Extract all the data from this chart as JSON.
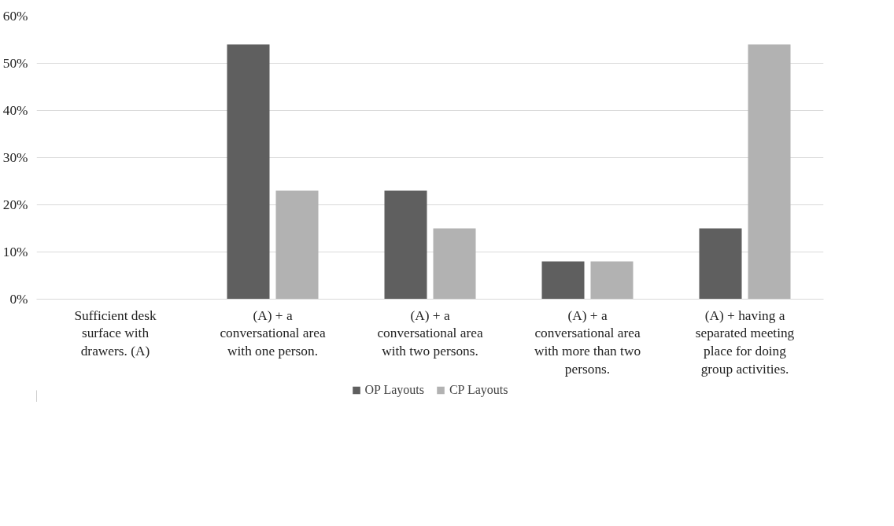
{
  "chart_data": {
    "type": "bar",
    "categories": [
      "Sufficient desk surface with drawers. (A)",
      "(A) + a conversational area with one person.",
      "(A) + a conversational area with two persons.",
      "(A) + a conversational area with more than two persons.",
      "(A) + having a separated meeting place for doing group activities."
    ],
    "series": [
      {
        "name": "OP Layouts",
        "color": "#5f5f5f",
        "values": [
          0,
          54,
          23,
          8,
          15
        ]
      },
      {
        "name": "CP Layouts",
        "color": "#b2b2b2",
        "values": [
          0,
          23,
          15,
          8,
          54
        ]
      }
    ],
    "ylim": [
      0,
      60
    ],
    "yticks": [
      {
        "value": 0,
        "label": "0%"
      },
      {
        "value": 10,
        "label": "10%"
      },
      {
        "value": 20,
        "label": "20%"
      },
      {
        "value": 30,
        "label": "30%"
      },
      {
        "value": 40,
        "label": "40%"
      },
      {
        "value": 50,
        "label": "50%"
      },
      {
        "value": 60,
        "label": "60%"
      }
    ],
    "grid": "y",
    "legend": "bottom"
  }
}
